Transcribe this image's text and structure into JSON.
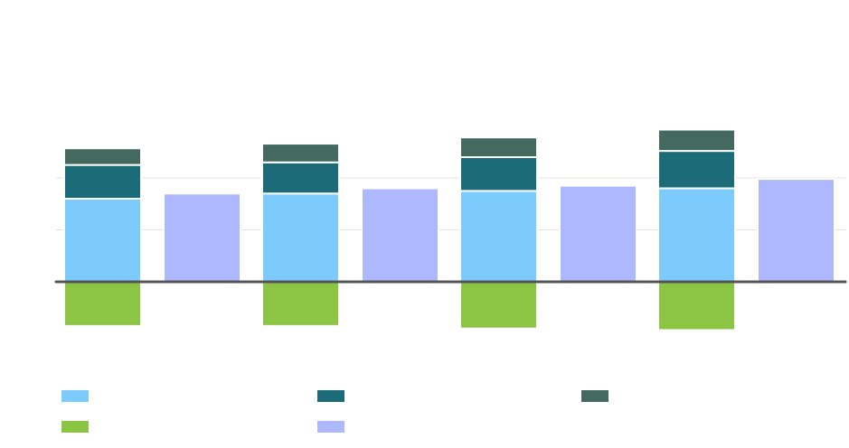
{
  "chart_data": {
    "type": "bar",
    "stacked": true,
    "title": "",
    "xlabel": "",
    "ylabel": "",
    "categories": [
      "",
      "",
      "",
      ""
    ],
    "ylim": [
      -1.0,
      4.0
    ],
    "gridlines": [
      1,
      2
    ],
    "grid": true,
    "legend": "bottom",
    "stack_a": {
      "series": [
        {
          "key": "a1",
          "name": "",
          "color": "#7DCAFD",
          "values": [
            1.6,
            1.7,
            1.75,
            1.8
          ]
        },
        {
          "key": "a2",
          "name": "",
          "color": "#1B6C78",
          "values": [
            0.65,
            0.6,
            0.65,
            0.72
          ]
        },
        {
          "key": "a3",
          "name": "",
          "color": "#44695F",
          "values": [
            0.32,
            0.36,
            0.38,
            0.41
          ]
        },
        {
          "key": "a4",
          "name": "",
          "color": "#8CC443",
          "values": [
            -0.85,
            -0.85,
            -0.9,
            -0.93
          ]
        }
      ]
    },
    "stack_b": {
      "series": [
        {
          "key": "b1",
          "name": "",
          "color": "#AEB8FE",
          "values": [
            1.7,
            1.8,
            1.85,
            1.98
          ]
        }
      ]
    },
    "legend_order": [
      "a1",
      "a2",
      "a3",
      "a4",
      "b1"
    ]
  }
}
